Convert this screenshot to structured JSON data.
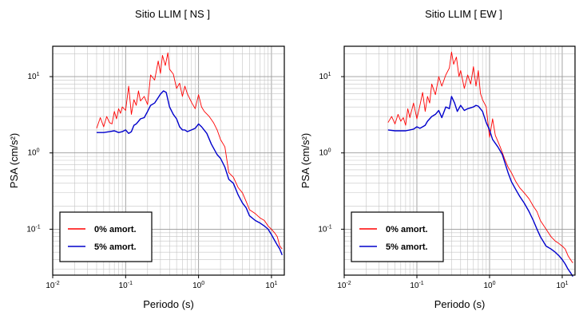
{
  "chart_data": [
    {
      "type": "line",
      "title": "Sitio LLIM [ NS ]",
      "xlabel": "Periodo (s)",
      "ylabel": "PSA (cm/s²)",
      "xscale": "log",
      "yscale": "log",
      "xlim": [
        0.01,
        15
      ],
      "ylim": [
        0.025,
        25
      ],
      "x_ticks": [
        {
          "value": 0.01,
          "base": "10",
          "exp": "-2"
        },
        {
          "value": 0.1,
          "base": "10",
          "exp": "-1"
        },
        {
          "value": 1,
          "base": "10",
          "exp": "0"
        },
        {
          "value": 10,
          "base": "10",
          "exp": "1"
        }
      ],
      "y_ticks": [
        {
          "value": 0.1,
          "base": "10",
          "exp": "-1"
        },
        {
          "value": 1,
          "base": "10",
          "exp": "0"
        },
        {
          "value": 10,
          "base": "10",
          "exp": "1"
        }
      ],
      "grid": true,
      "legend_position": "bottom-left",
      "series": [
        {
          "name": "0% amort.",
          "color": "#ff0000",
          "x": [
            0.04,
            0.045,
            0.05,
            0.055,
            0.06,
            0.065,
            0.07,
            0.075,
            0.08,
            0.085,
            0.09,
            0.1,
            0.11,
            0.12,
            0.13,
            0.14,
            0.15,
            0.16,
            0.18,
            0.2,
            0.22,
            0.25,
            0.28,
            0.3,
            0.32,
            0.35,
            0.38,
            0.4,
            0.45,
            0.5,
            0.55,
            0.6,
            0.65,
            0.7,
            0.8,
            0.9,
            1.0,
            1.1,
            1.2,
            1.4,
            1.6,
            1.8,
            2.0,
            2.3,
            2.6,
            3.0,
            3.5,
            4.0,
            4.5,
            5,
            6,
            7,
            8,
            9,
            10,
            11,
            12,
            13,
            14
          ],
          "values": [
            2.1,
            2.9,
            2.2,
            3.0,
            2.5,
            2.4,
            3.5,
            2.8,
            3.8,
            3.3,
            4.0,
            3.6,
            7.5,
            3.2,
            5.0,
            4.2,
            6.5,
            4.8,
            5.5,
            4.3,
            10.5,
            9.0,
            16.0,
            11.0,
            19.0,
            14.0,
            20.5,
            12.5,
            10.8,
            7.0,
            8.2,
            5.5,
            7.5,
            6.0,
            4.6,
            3.8,
            5.8,
            4.0,
            3.5,
            3.0,
            2.5,
            2.0,
            1.5,
            1.2,
            0.55,
            0.48,
            0.35,
            0.3,
            0.23,
            0.18,
            0.16,
            0.14,
            0.13,
            0.11,
            0.1,
            0.09,
            0.08,
            0.06,
            0.055
          ]
        },
        {
          "name": "5% amort.",
          "color": "#0000cc",
          "x": [
            0.04,
            0.05,
            0.06,
            0.07,
            0.08,
            0.09,
            0.1,
            0.11,
            0.12,
            0.13,
            0.14,
            0.16,
            0.18,
            0.2,
            0.22,
            0.25,
            0.28,
            0.3,
            0.33,
            0.36,
            0.4,
            0.45,
            0.5,
            0.55,
            0.6,
            0.65,
            0.7,
            0.8,
            0.9,
            1.0,
            1.1,
            1.3,
            1.5,
            1.8,
            2.0,
            2.3,
            2.6,
            3.0,
            3.5,
            4.0,
            4.5,
            5,
            6,
            7,
            8,
            9,
            10,
            11,
            12,
            13,
            14
          ],
          "values": [
            1.85,
            1.85,
            1.9,
            1.95,
            1.85,
            1.9,
            2.0,
            1.8,
            1.9,
            2.3,
            2.4,
            2.8,
            2.9,
            3.5,
            4.2,
            4.5,
            5.3,
            5.9,
            6.5,
            6.2,
            4.0,
            3.2,
            2.8,
            2.2,
            2.0,
            2.0,
            1.9,
            2.0,
            2.1,
            2.4,
            2.2,
            1.8,
            1.3,
            0.95,
            0.85,
            0.65,
            0.45,
            0.4,
            0.28,
            0.22,
            0.19,
            0.15,
            0.13,
            0.12,
            0.11,
            0.1,
            0.085,
            0.072,
            0.062,
            0.055,
            0.046
          ]
        }
      ]
    },
    {
      "type": "line",
      "title": "Sitio LLIM [ EW ]",
      "xlabel": "Periodo (s)",
      "ylabel": "PSA (cm/s²)",
      "xscale": "log",
      "yscale": "log",
      "xlim": [
        0.01,
        15
      ],
      "ylim": [
        0.025,
        25
      ],
      "x_ticks": [
        {
          "value": 0.01,
          "base": "10",
          "exp": "-2"
        },
        {
          "value": 0.1,
          "base": "10",
          "exp": "-1"
        },
        {
          "value": 1,
          "base": "10",
          "exp": "0"
        },
        {
          "value": 10,
          "base": "10",
          "exp": "1"
        }
      ],
      "y_ticks": [
        {
          "value": 0.1,
          "base": "10",
          "exp": "-1"
        },
        {
          "value": 1,
          "base": "10",
          "exp": "0"
        },
        {
          "value": 10,
          "base": "10",
          "exp": "1"
        }
      ],
      "grid": true,
      "legend_position": "bottom-left",
      "series": [
        {
          "name": "0% amort.",
          "color": "#ff0000",
          "x": [
            0.04,
            0.045,
            0.05,
            0.055,
            0.06,
            0.065,
            0.07,
            0.075,
            0.08,
            0.09,
            0.1,
            0.11,
            0.12,
            0.13,
            0.14,
            0.15,
            0.16,
            0.18,
            0.2,
            0.22,
            0.25,
            0.28,
            0.3,
            0.32,
            0.35,
            0.38,
            0.4,
            0.45,
            0.5,
            0.55,
            0.6,
            0.65,
            0.7,
            0.75,
            0.8,
            0.9,
            1.0,
            1.1,
            1.2,
            1.4,
            1.6,
            1.8,
            2.0,
            2.3,
            2.6,
            3.0,
            3.5,
            4.0,
            4.5,
            5,
            6,
            7,
            8,
            9,
            10,
            11,
            12,
            13,
            14
          ],
          "values": [
            2.5,
            3.0,
            2.4,
            3.2,
            2.6,
            2.9,
            2.3,
            3.8,
            2.9,
            4.5,
            2.8,
            4.2,
            6.2,
            3.5,
            5.5,
            4.5,
            8.0,
            5.8,
            10.0,
            7.5,
            10.5,
            13.0,
            21.0,
            14.5,
            18.0,
            10.0,
            12.0,
            7.0,
            10.5,
            8.0,
            13.5,
            7.5,
            12.0,
            6.0,
            5.0,
            4.0,
            1.6,
            2.8,
            1.7,
            1.2,
            0.85,
            0.65,
            0.55,
            0.42,
            0.35,
            0.3,
            0.25,
            0.2,
            0.17,
            0.13,
            0.1,
            0.08,
            0.07,
            0.065,
            0.06,
            0.055,
            0.045,
            0.04,
            0.036
          ]
        },
        {
          "name": "5% amort.",
          "color": "#0000cc",
          "x": [
            0.04,
            0.05,
            0.06,
            0.07,
            0.08,
            0.09,
            0.1,
            0.11,
            0.12,
            0.13,
            0.14,
            0.16,
            0.18,
            0.2,
            0.22,
            0.25,
            0.28,
            0.3,
            0.33,
            0.36,
            0.4,
            0.45,
            0.5,
            0.55,
            0.6,
            0.65,
            0.7,
            0.8,
            0.9,
            1.0,
            1.1,
            1.3,
            1.5,
            1.8,
            2.0,
            2.3,
            2.6,
            3.0,
            3.5,
            4.0,
            4.5,
            5,
            6,
            7,
            8,
            9,
            10,
            11,
            12,
            13,
            14
          ],
          "values": [
            2.0,
            1.95,
            1.95,
            1.95,
            2.0,
            2.05,
            2.2,
            2.1,
            2.2,
            2.3,
            2.6,
            3.0,
            3.2,
            3.6,
            2.9,
            4.0,
            3.8,
            5.5,
            4.5,
            3.5,
            4.2,
            3.6,
            3.8,
            3.9,
            4.0,
            4.2,
            4.1,
            3.5,
            2.5,
            2.0,
            1.5,
            1.2,
            0.95,
            0.55,
            0.42,
            0.33,
            0.27,
            0.22,
            0.17,
            0.13,
            0.1,
            0.08,
            0.06,
            0.055,
            0.05,
            0.045,
            0.04,
            0.035,
            0.03,
            0.027,
            0.024
          ]
        }
      ]
    }
  ]
}
